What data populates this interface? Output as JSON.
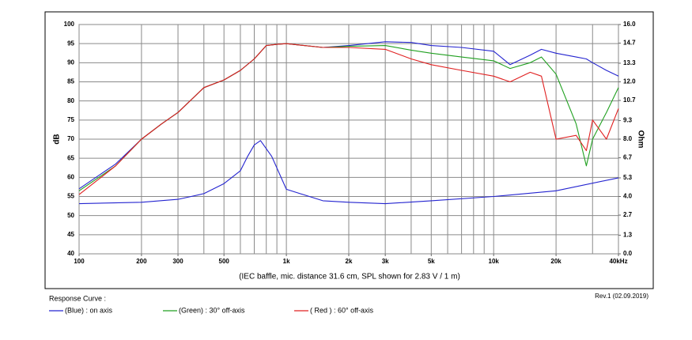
{
  "chart_data": {
    "type": "line",
    "caption": "(IEC baffle, mic. distance 31.6 cm, SPL shown for 2.83 V / 1 m)",
    "ylabel": "dB",
    "y2label": "Ohm",
    "legend_title": "Response Curve :",
    "revision": "Rev.1 (02.09.2019)",
    "xscale": "log",
    "grid": true,
    "xlim": [
      100,
      40000
    ],
    "xticks": [
      100,
      200,
      300,
      500,
      {
        "value": 1000,
        "label": "1k"
      },
      {
        "value": 2000,
        "label": "2k"
      },
      {
        "value": 3000,
        "label": "3k"
      },
      {
        "value": 5000,
        "label": "5k"
      },
      {
        "value": 10000,
        "label": "10k"
      },
      {
        "value": 20000,
        "label": "20k"
      },
      {
        "value": 40000,
        "label": "40kHz"
      }
    ],
    "xgrid": [
      100,
      200,
      300,
      400,
      500,
      600,
      700,
      800,
      900,
      1000,
      2000,
      3000,
      4000,
      5000,
      6000,
      7000,
      8000,
      9000,
      10000,
      20000,
      30000,
      40000
    ],
    "ylim": [
      40,
      100
    ],
    "yticks": [
      40,
      45,
      50,
      55,
      60,
      65,
      70,
      75,
      80,
      85,
      90,
      95,
      100
    ],
    "y2lim": [
      0,
      16
    ],
    "y2ticks": [
      {
        "value": 0,
        "label": "0.0"
      },
      1.3,
      2.7,
      {
        "value": 4,
        "label": "4.0"
      },
      5.3,
      6.7,
      {
        "value": 8,
        "label": "8.0"
      },
      9.3,
      10.7,
      {
        "value": 12,
        "label": "12.0"
      },
      13.3,
      14.7,
      {
        "value": 16,
        "label": "16.0"
      }
    ],
    "x": [
      100,
      150,
      200,
      250,
      300,
      400,
      500,
      600,
      700,
      800,
      900,
      1000,
      1500,
      2000,
      3000,
      4000,
      5000,
      7000,
      10000,
      12000,
      15000,
      17000,
      20000,
      25000,
      28000,
      30000,
      35000,
      40000
    ],
    "series": [
      {
        "name": "(Blue)  : on axis",
        "color": "#2424d0",
        "values": [
          57,
          63.5,
          70,
          74,
          77,
          83.5,
          85.5,
          88,
          91,
          94.5,
          94.8,
          95,
          94,
          94.5,
          95.5,
          95.3,
          94.5,
          94,
          93,
          89.5,
          92,
          93.5,
          92.5,
          91.5,
          91,
          90,
          88,
          86.5
        ]
      },
      {
        "name": "(Green) : 30° off-axis",
        "color": "#20a020",
        "values": [
          56.5,
          63,
          70,
          74,
          77,
          83.5,
          85.5,
          88,
          91,
          94.5,
          94.8,
          95,
          94,
          94.3,
          94.5,
          93.3,
          92.5,
          91.5,
          90.5,
          88.5,
          90,
          91.5,
          87,
          74,
          63,
          70,
          77,
          83.5
        ]
      },
      {
        "name": "( Red ) : 60° off-axis",
        "color": "#e02020",
        "values": [
          55.5,
          63,
          70,
          74,
          77,
          83.5,
          85.5,
          88,
          91,
          94.5,
          94.8,
          95,
          94,
          94,
          93.5,
          91,
          89.5,
          88,
          86.5,
          85,
          87.5,
          86.5,
          70,
          71,
          67,
          75,
          70,
          78
        ]
      },
      {
        "color": "#2424d0",
        "axis": "y2",
        "x": [
          100,
          200,
          300,
          400,
          500,
          600,
          650,
          700,
          750,
          850,
          1000,
          1500,
          2000,
          3000,
          5000,
          10000,
          20000,
          40000
        ],
        "values": [
          3.5,
          3.6,
          3.8,
          4.2,
          4.9,
          5.8,
          6.8,
          7.6,
          7.9,
          6.8,
          4.5,
          3.7,
          3.6,
          3.5,
          3.7,
          4.0,
          4.4,
          5.3
        ]
      }
    ]
  }
}
